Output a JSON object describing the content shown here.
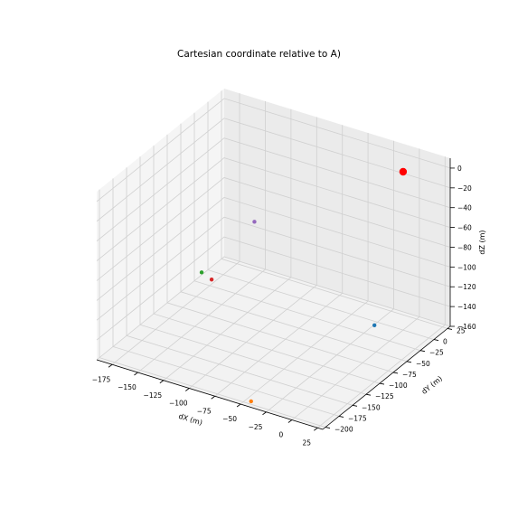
{
  "chart_data": {
    "type": "scatter",
    "title": "Cartesian coordinate relative to A)",
    "xlabel": "dX (m)",
    "ylabel": "dY (m)",
    "zlabel": "dZ (m)",
    "xlim": [
      -190,
      30
    ],
    "ylim": [
      -205,
      30
    ],
    "zlim": [
      -160,
      10
    ],
    "xticks": [
      -175,
      -150,
      -125,
      -100,
      -75,
      -50,
      -25,
      0,
      25
    ],
    "xtick_labels": [
      "−175",
      "−150",
      "−125",
      "−100",
      "−75",
      "−50",
      "−25",
      "0",
      "25"
    ],
    "yticks": [
      -200,
      -175,
      -150,
      -125,
      -100,
      -75,
      -50,
      -25,
      0,
      25
    ],
    "ytick_labels": [
      "−200",
      "−175",
      "−150",
      "−125",
      "−100",
      "−75",
      "−50",
      "−25",
      "0",
      "25"
    ],
    "zticks": [
      -160,
      -140,
      -120,
      -100,
      -80,
      -60,
      -40,
      -20,
      0
    ],
    "ztick_labels": [
      "−160",
      "−140",
      "−120",
      "−100",
      "−80",
      "−60",
      "−40",
      "−20",
      "0"
    ],
    "grid": true,
    "points": [
      {
        "x": 0,
        "y": 0,
        "z": 0,
        "color": "#ff0000",
        "size": "large"
      },
      {
        "x": -20,
        "y": -15,
        "z": -155,
        "color": "#1f77b4",
        "size": "small"
      },
      {
        "x": -45,
        "y": -195,
        "z": -160,
        "color": "#ff7f0e",
        "size": "small"
      },
      {
        "x": -175,
        "y": -40,
        "z": -140,
        "color": "#2ca02c",
        "size": "small"
      },
      {
        "x": -160,
        "y": -50,
        "z": -138,
        "color": "#d62728",
        "size": "small"
      },
      {
        "x": -150,
        "y": 10,
        "z": -103,
        "color": "#9467bd",
        "size": "small"
      }
    ]
  }
}
